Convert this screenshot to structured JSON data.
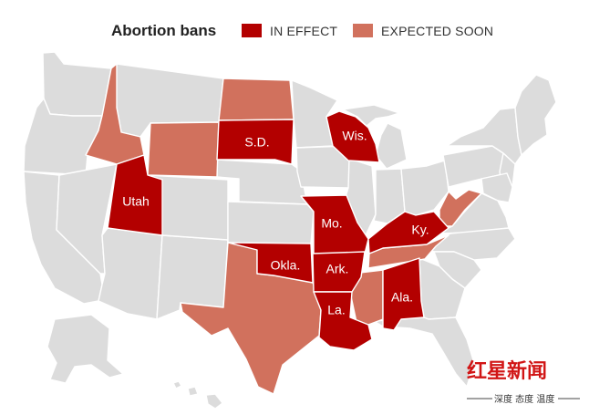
{
  "legend": {
    "title": "Abortion bans",
    "in_effect": "IN EFFECT",
    "expected_soon": "EXPECTED SOON"
  },
  "colors": {
    "in_effect": "#b30000",
    "expected_soon": "#d1715d",
    "other": "#dcdcdc"
  },
  "labels": {
    "sd": "S.D.",
    "wis": "Wis.",
    "utah": "Utah",
    "mo": "Mo.",
    "ky": "Ky.",
    "okla": "Okla.",
    "ark": "Ark.",
    "la": "La.",
    "ala": "Ala."
  },
  "watermark": {
    "brand": "红星新闻",
    "slogan": "深度 态度 温度"
  }
}
